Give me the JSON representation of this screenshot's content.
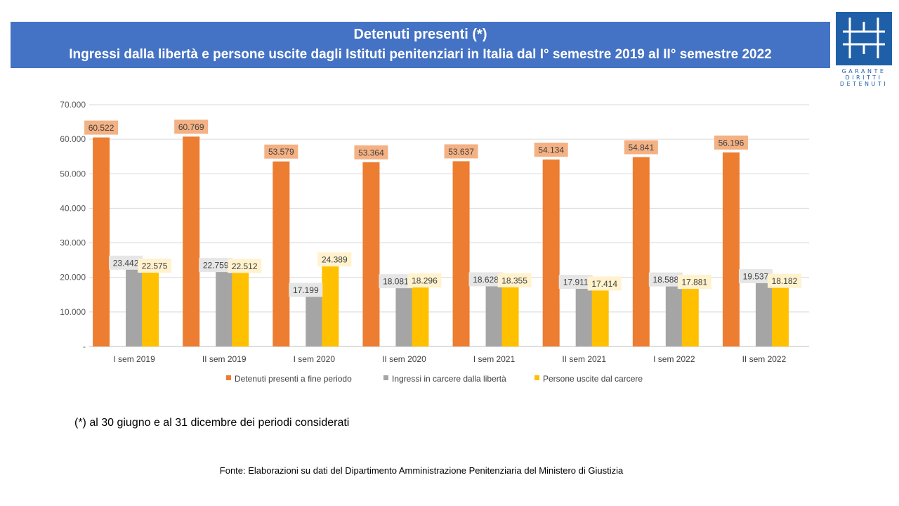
{
  "header": {
    "title_line_1": "Detenuti presenti (*)",
    "title_line_2": "Ingressi dalla libertà e persone uscite dagli Istituti penitenziari in Italia dal I° semestre 2019 al II° semestre 2022",
    "background_color": "#4472C4"
  },
  "logo": {
    "lines": [
      "GARANTE",
      "DIRITTI",
      "DETENUTI"
    ],
    "color": "#1F5FA8"
  },
  "chart_data": {
    "type": "bar",
    "categories": [
      "I sem 2019",
      "II sem 2019",
      "I sem 2020",
      "II sem 2020",
      "I sem 2021",
      "II sem 2021",
      "I sem 2022",
      "II sem 2022"
    ],
    "series": [
      {
        "name": "Detenuti presenti a fine periodo",
        "color": "#ED7D31",
        "label_bg": "#F4B183",
        "values": [
          60522,
          60769,
          53579,
          53364,
          53637,
          54134,
          54841,
          56196
        ],
        "labels": [
          "60.522",
          "60.769",
          "53.579",
          "53.364",
          "53.637",
          "54.134",
          "54.841",
          "56.196"
        ]
      },
      {
        "name": "Ingressi in carcere dalla libertà",
        "color": "#A5A5A5",
        "label_bg": "#E7E6E6",
        "values": [
          23442,
          22759,
          17199,
          18081,
          18628,
          17911,
          18588,
          19537
        ],
        "labels": [
          "23.442",
          "22.759",
          "17.199",
          "18.081",
          "18.628",
          "17.911",
          "18.588",
          "19.537"
        ]
      },
      {
        "name": "Persone uscite dal carcere",
        "color": "#FFC000",
        "label_bg": "#FFF2CC",
        "values": [
          22575,
          22512,
          24389,
          18296,
          18355,
          17414,
          17881,
          18182
        ],
        "labels": [
          "22.575",
          "22.512",
          "24.389",
          "18.296",
          "18.355",
          "17.414",
          "17.881",
          "18.182"
        ]
      }
    ],
    "ylim": [
      0,
      70000
    ],
    "y_ticks": [
      "-",
      "10.000",
      "20.000",
      "30.000",
      "40.000",
      "50.000",
      "60.000",
      "70.000"
    ],
    "grid": true,
    "legend_position": "bottom"
  },
  "footnote": "(*) al 30 giugno e al 31 dicembre dei periodi considerati",
  "source": "Fonte: Elaborazioni su dati del Dipartimento Amministrazione Penitenziaria del Ministero di Giustizia"
}
